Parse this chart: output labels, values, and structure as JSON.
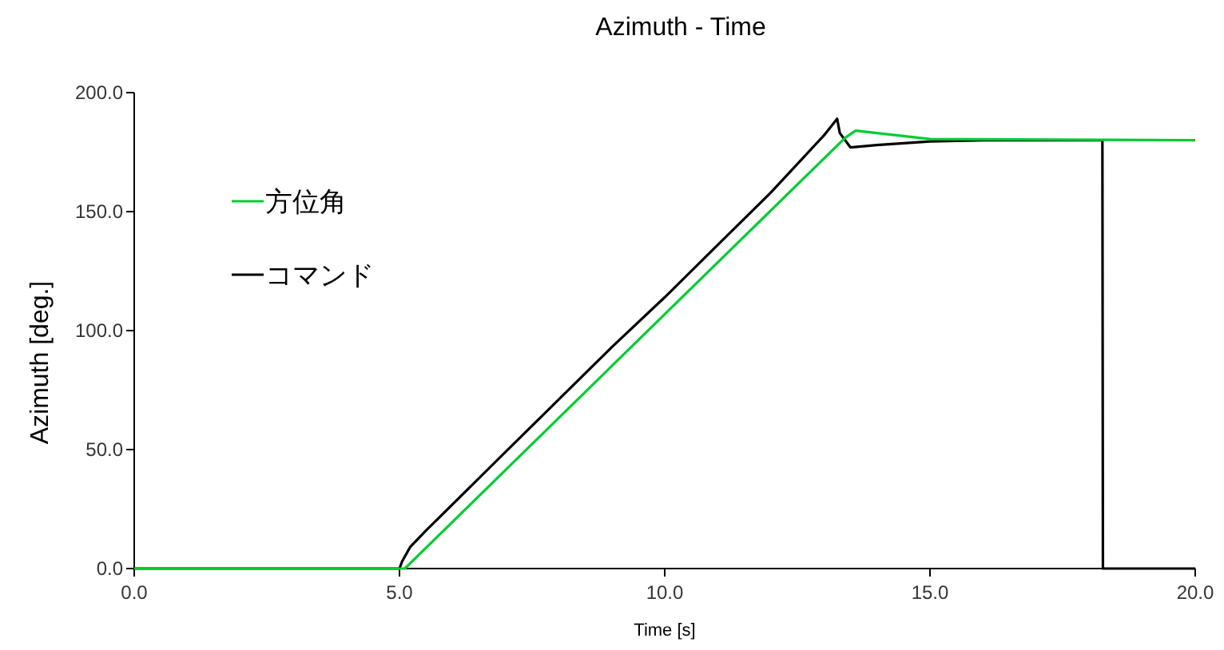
{
  "chart_data": {
    "type": "line",
    "title": "Azimuth - Time",
    "xlabel": "Time [s]",
    "ylabel": "Azimuth [deg.]",
    "xlim": [
      0,
      20
    ],
    "xticks": [
      {
        "value": 0,
        "label": "0.0"
      },
      {
        "value": 5,
        "label": "5.0"
      },
      {
        "value": 10,
        "label": "10.0"
      },
      {
        "value": 15,
        "label": "15.0"
      },
      {
        "value": 20,
        "label": "20.0"
      }
    ],
    "ylim": [
      0,
      200
    ],
    "yticks": [
      {
        "value": 0,
        "label": "0.0"
      },
      {
        "value": 50,
        "label": "50.0"
      },
      {
        "value": 100,
        "label": "100.0"
      },
      {
        "value": 150,
        "label": "150.0"
      },
      {
        "value": 200,
        "label": "200.0"
      }
    ],
    "grid": false,
    "legend": "top left",
    "line_style": "solid",
    "series": [
      {
        "name": "方位角",
        "color": "#00cc33",
        "x": [
          0,
          5.1,
          13.4,
          13.6,
          14,
          15,
          20
        ],
        "values": [
          0,
          0,
          181,
          184,
          183,
          180.5,
          180
        ]
      },
      {
        "name": "コマンド",
        "color": "#000000",
        "x": [
          0,
          5.0,
          5.05,
          5.2,
          5.5,
          6,
          7,
          8,
          9,
          10,
          11,
          12,
          13,
          13.25,
          13.3,
          13.5,
          14,
          15,
          16,
          17,
          18.25,
          18.26,
          20
        ],
        "values": [
          0,
          0,
          3,
          9,
          16,
          27,
          49,
          71,
          93,
          114,
          136,
          158,
          182,
          189,
          183,
          177,
          178,
          179.5,
          180,
          180,
          180,
          0,
          0
        ]
      }
    ]
  }
}
